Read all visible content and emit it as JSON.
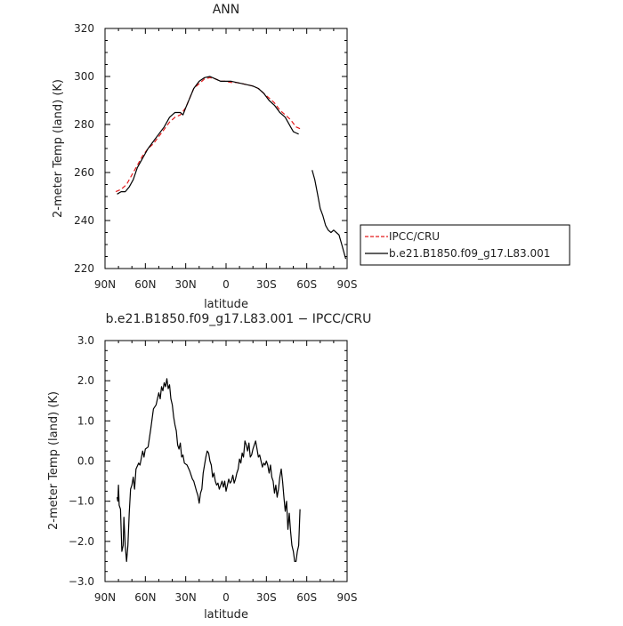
{
  "chart_data": [
    {
      "type": "line",
      "title": "ANN",
      "xlabel": "latitude",
      "ylabel": "2-meter Temp (land) (K)",
      "x_ticks": [
        -90,
        -60,
        -30,
        0,
        30,
        60,
        90
      ],
      "x_tick_labels": [
        "90N",
        "60N",
        "30N",
        "0",
        "30S",
        "60S",
        "90S"
      ],
      "xlim": [
        -90,
        90
      ],
      "ylim": [
        220,
        320
      ],
      "y_ticks": [
        220,
        240,
        260,
        280,
        300,
        320
      ],
      "y_tick_labels": [
        "220",
        "240",
        "260",
        "280",
        "300",
        "320"
      ],
      "grid": false,
      "legend_position": "right",
      "series": [
        {
          "name": "IPCC/CRU",
          "color": "#e31a1c",
          "dash": "dashed",
          "points": [
            [
              -82,
              252
            ],
            [
              -78,
              253
            ],
            [
              -74,
              255
            ],
            [
              -70,
              259
            ],
            [
              -66,
              263
            ],
            [
              -62,
              267
            ],
            [
              -58,
              270
            ],
            [
              -54,
              272
            ],
            [
              -50,
              275
            ],
            [
              -46,
              278
            ],
            [
              -42,
              281
            ],
            [
              -38,
              283
            ],
            [
              -34,
              284
            ],
            [
              -30,
              287
            ],
            [
              -27,
              291
            ],
            [
              -24,
              295
            ],
            [
              -20,
              297
            ],
            [
              -16,
              299
            ],
            [
              -12,
              299.5
            ],
            [
              -8,
              299
            ],
            [
              -4,
              298
            ],
            [
              0,
              298
            ],
            [
              4,
              297.5
            ],
            [
              8,
              297.5
            ],
            [
              12,
              297
            ],
            [
              16,
              296.5
            ],
            [
              20,
              296
            ],
            [
              24,
              295
            ],
            [
              28,
              293
            ],
            [
              32,
              291
            ],
            [
              36,
              289
            ],
            [
              40,
              286
            ],
            [
              44,
              284
            ],
            [
              48,
              282
            ],
            [
              52,
              279
            ],
            [
              56,
              278
            ]
          ]
        },
        {
          "name": "b.e21.B1850.f09_g17.L83.001",
          "color": "#000000",
          "dash": "solid",
          "segments": [
            [
              [
                -81,
                251
              ],
              [
                -78,
                252
              ],
              [
                -75,
                252
              ],
              [
                -72,
                254
              ],
              [
                -69,
                257
              ],
              [
                -66,
                262
              ],
              [
                -62,
                266
              ],
              [
                -58,
                270
              ],
              [
                -54,
                273
              ],
              [
                -50,
                276
              ],
              [
                -46,
                279
              ],
              [
                -42,
                283
              ],
              [
                -38,
                285
              ],
              [
                -34,
                285
              ],
              [
                -32,
                284
              ],
              [
                -30,
                287
              ],
              [
                -27,
                291
              ],
              [
                -24,
                295
              ],
              [
                -20,
                298
              ],
              [
                -16,
                299.5
              ],
              [
                -12,
                300
              ],
              [
                -8,
                299
              ],
              [
                -4,
                298
              ],
              [
                0,
                298
              ],
              [
                4,
                298
              ],
              [
                8,
                297.5
              ],
              [
                12,
                297
              ],
              [
                16,
                296.5
              ],
              [
                20,
                296
              ],
              [
                24,
                295
              ],
              [
                28,
                293
              ],
              [
                32,
                290
              ],
              [
                36,
                288
              ],
              [
                40,
                285
              ],
              [
                44,
                283
              ],
              [
                46,
                281
              ],
              [
                48,
                279
              ],
              [
                50,
                277
              ],
              [
                52,
                276.5
              ],
              [
                54,
                276
              ]
            ],
            [
              [
                64,
                261
              ],
              [
                66,
                257
              ],
              [
                68,
                251
              ],
              [
                70,
                245
              ],
              [
                72,
                242
              ],
              [
                74,
                238
              ],
              [
                76,
                236
              ],
              [
                78,
                235
              ],
              [
                80,
                236
              ],
              [
                82,
                235
              ],
              [
                84,
                234
              ],
              [
                86,
                230
              ],
              [
                88,
                226
              ],
              [
                89,
                224
              ]
            ]
          ]
        }
      ]
    },
    {
      "type": "line",
      "title": "b.e21.B1850.f09_g17.L83.001 − IPCC/CRU",
      "xlabel": "latitude",
      "ylabel": "2-meter Temp (land) (K)",
      "x_ticks": [
        -90,
        -60,
        -30,
        0,
        30,
        60,
        90
      ],
      "x_tick_labels": [
        "90N",
        "60N",
        "30N",
        "0",
        "30S",
        "60S",
        "90S"
      ],
      "xlim": [
        -90,
        90
      ],
      "ylim": [
        -3,
        3
      ],
      "y_ticks": [
        -3,
        -2,
        -1,
        0,
        1,
        2,
        3
      ],
      "y_tick_labels": [
        "−3.0",
        "−2.0",
        "−1.0",
        "0.0",
        "1.0",
        "2.0",
        "3.0"
      ],
      "grid": false,
      "series": [
        {
          "color": "#000000",
          "dash": "solid",
          "points": [
            [
              -81,
              -0.9
            ],
            [
              -80.5,
              -1.0
            ],
            [
              -80,
              -0.6
            ],
            [
              -79.5,
              -1.1
            ],
            [
              -78.5,
              -1.2
            ],
            [
              -77.5,
              -2.25
            ],
            [
              -76.5,
              -2.1
            ],
            [
              -76,
              -1.4
            ],
            [
              -75,
              -2.1
            ],
            [
              -74,
              -2.5
            ],
            [
              -73,
              -2.1
            ],
            [
              -72,
              -1.3
            ],
            [
              -71,
              -0.7
            ],
            [
              -70,
              -0.6
            ],
            [
              -69,
              -0.4
            ],
            [
              -68,
              -0.7
            ],
            [
              -67,
              -0.2
            ],
            [
              -65,
              -0.05
            ],
            [
              -64,
              -0.1
            ],
            [
              -62,
              0.25
            ],
            [
              -61,
              0.1
            ],
            [
              -60,
              0.3
            ],
            [
              -58,
              0.35
            ],
            [
              -56,
              0.8
            ],
            [
              -54,
              1.3
            ],
            [
              -52,
              1.4
            ],
            [
              -50,
              1.7
            ],
            [
              -49,
              1.55
            ],
            [
              -48,
              1.85
            ],
            [
              -47,
              1.75
            ],
            [
              -46,
              1.95
            ],
            [
              -45,
              1.85
            ],
            [
              -44,
              2.05
            ],
            [
              -43,
              1.8
            ],
            [
              -42,
              1.9
            ],
            [
              -41,
              1.55
            ],
            [
              -40,
              1.4
            ],
            [
              -39,
              1.1
            ],
            [
              -38,
              0.9
            ],
            [
              -37,
              0.75
            ],
            [
              -36,
              0.4
            ],
            [
              -35,
              0.3
            ],
            [
              -34,
              0.45
            ],
            [
              -33,
              0.1
            ],
            [
              -32,
              0.15
            ],
            [
              -31,
              -0.05
            ],
            [
              -29,
              -0.1
            ],
            [
              -27,
              -0.25
            ],
            [
              -25,
              -0.45
            ],
            [
              -24,
              -0.5
            ],
            [
              -22,
              -0.75
            ],
            [
              -21,
              -0.85
            ],
            [
              -20,
              -1.05
            ],
            [
              -19,
              -0.8
            ],
            [
              -18,
              -0.7
            ],
            [
              -17,
              -0.3
            ],
            [
              -16,
              -0.1
            ],
            [
              -15,
              0.1
            ],
            [
              -14,
              0.25
            ],
            [
              -13,
              0.2
            ],
            [
              -12,
              0.0
            ],
            [
              -11,
              -0.1
            ],
            [
              -10,
              -0.4
            ],
            [
              -9,
              -0.3
            ],
            [
              -8,
              -0.5
            ],
            [
              -7,
              -0.6
            ],
            [
              -6,
              -0.55
            ],
            [
              -5,
              -0.7
            ],
            [
              -4,
              -0.6
            ],
            [
              -3,
              -0.5
            ],
            [
              -2,
              -0.65
            ],
            [
              -1,
              -0.5
            ],
            [
              0,
              -0.75
            ],
            [
              1,
              -0.6
            ],
            [
              2,
              -0.45
            ],
            [
              3,
              -0.55
            ],
            [
              4,
              -0.5
            ],
            [
              5,
              -0.35
            ],
            [
              6,
              -0.55
            ],
            [
              7,
              -0.45
            ],
            [
              8,
              -0.3
            ],
            [
              9,
              -0.2
            ],
            [
              10,
              0.05
            ],
            [
              11,
              -0.05
            ],
            [
              12,
              0.2
            ],
            [
              13,
              0.1
            ],
            [
              14,
              0.5
            ],
            [
              15,
              0.4
            ],
            [
              16,
              0.25
            ],
            [
              17,
              0.45
            ],
            [
              18,
              0.1
            ],
            [
              19,
              0.15
            ],
            [
              20,
              0.3
            ],
            [
              21,
              0.4
            ],
            [
              22,
              0.5
            ],
            [
              23,
              0.3
            ],
            [
              24,
              0.1
            ],
            [
              25,
              0.15
            ],
            [
              26,
              0.0
            ],
            [
              27,
              -0.15
            ],
            [
              28,
              -0.05
            ],
            [
              29,
              -0.1
            ],
            [
              30,
              0.0
            ],
            [
              31,
              -0.1
            ],
            [
              32,
              -0.3
            ],
            [
              33,
              -0.1
            ],
            [
              34,
              -0.4
            ],
            [
              35,
              -0.5
            ],
            [
              36,
              -0.8
            ],
            [
              37,
              -0.6
            ],
            [
              38,
              -0.9
            ],
            [
              39,
              -0.7
            ],
            [
              40,
              -0.4
            ],
            [
              41,
              -0.2
            ],
            [
              42,
              -0.5
            ],
            [
              43,
              -0.9
            ],
            [
              44,
              -1.25
            ],
            [
              45,
              -1.0
            ],
            [
              46,
              -1.7
            ],
            [
              47,
              -1.3
            ],
            [
              48,
              -1.75
            ],
            [
              49,
              -2.1
            ],
            [
              50,
              -2.25
            ],
            [
              51,
              -2.5
            ],
            [
              52,
              -2.5
            ],
            [
              53,
              -2.25
            ],
            [
              54,
              -2.1
            ],
            [
              55,
              -1.2
            ]
          ]
        }
      ]
    }
  ],
  "legend": {
    "items": [
      {
        "label": "IPCC/CRU",
        "color": "#e31a1c",
        "dash": "dashed"
      },
      {
        "label": "b.e21.B1850.f09_g17.L83.001",
        "color": "#000000",
        "dash": "solid"
      }
    ]
  }
}
